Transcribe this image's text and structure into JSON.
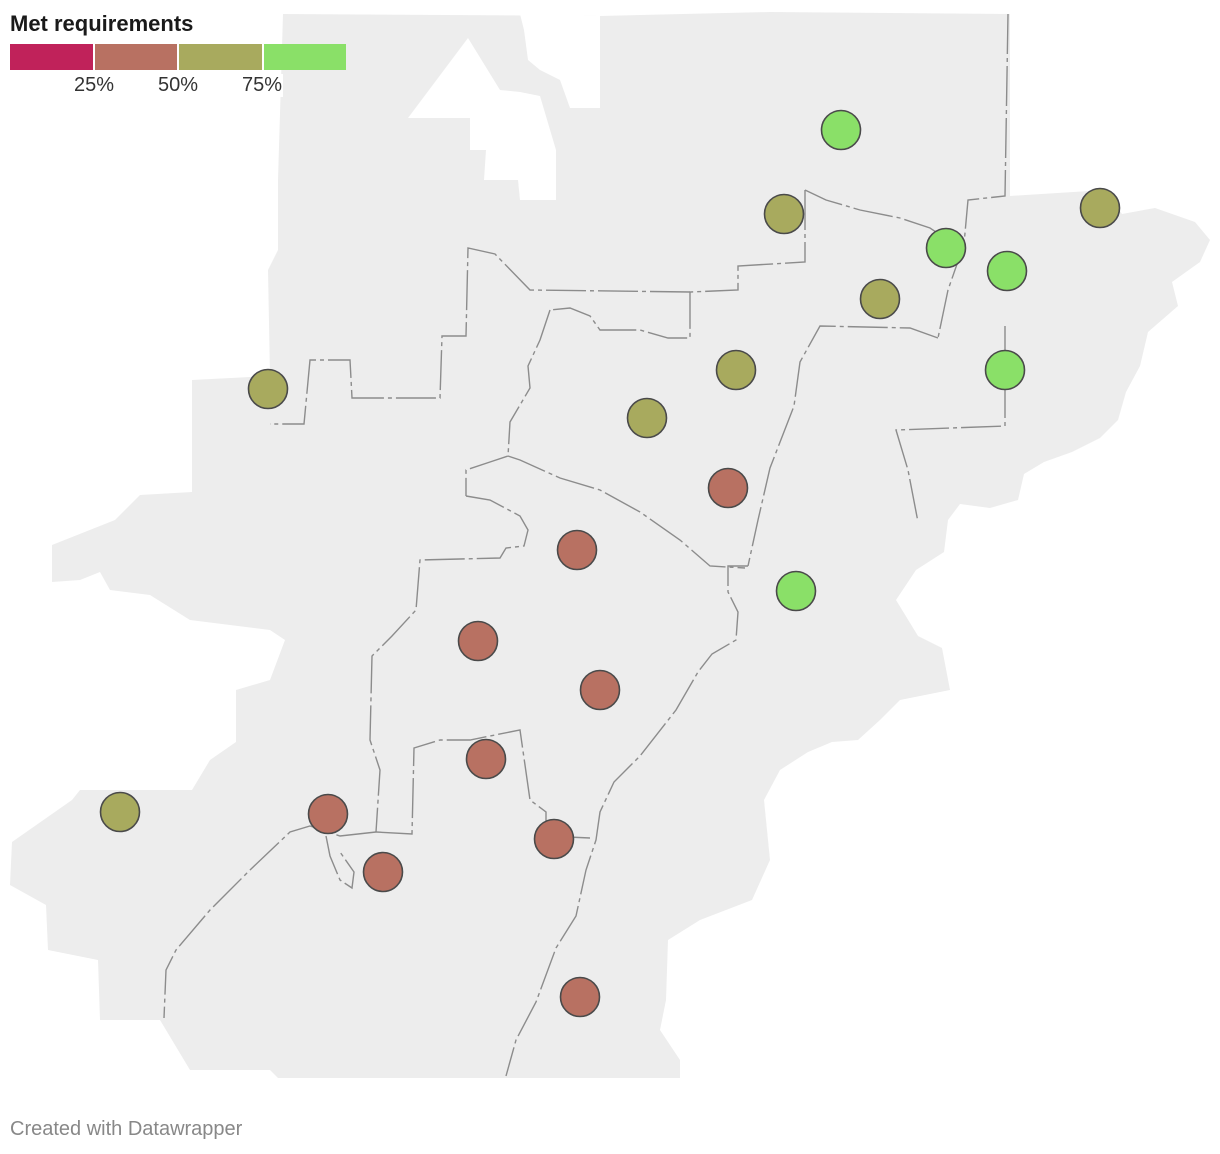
{
  "legend": {
    "title": "Met requirements",
    "bins": [
      {
        "color": "#c0225a"
      },
      {
        "color": "#b87162"
      },
      {
        "color": "#a8aa5e"
      },
      {
        "color": "#8ae068"
      }
    ],
    "ticks": [
      "25%",
      "50%",
      "75%"
    ]
  },
  "map": {
    "region_fill": "#ededed",
    "boundary_color": "#8c8c8c",
    "marker_stroke": "#4a4a4a",
    "markers": [
      {
        "category": "75-100%"
      },
      {
        "category": "50-75%"
      },
      {
        "category": "75-100%"
      },
      {
        "category": "75-100%"
      },
      {
        "category": "50-75%"
      },
      {
        "category": "50-75%"
      },
      {
        "category": "75-100%"
      },
      {
        "category": "50-75%"
      },
      {
        "category": "50-75%"
      },
      {
        "category": "50-75%"
      },
      {
        "category": "25-50%"
      },
      {
        "category": "25-50%"
      },
      {
        "category": "75-100%"
      },
      {
        "category": "25-50%"
      },
      {
        "category": "25-50%"
      },
      {
        "category": "25-50%"
      },
      {
        "category": "50-75%"
      },
      {
        "category": "25-50%"
      },
      {
        "category": "25-50%"
      },
      {
        "category": "25-50%"
      },
      {
        "category": "25-50%"
      }
    ]
  },
  "credit": "Created with Datawrapper"
}
